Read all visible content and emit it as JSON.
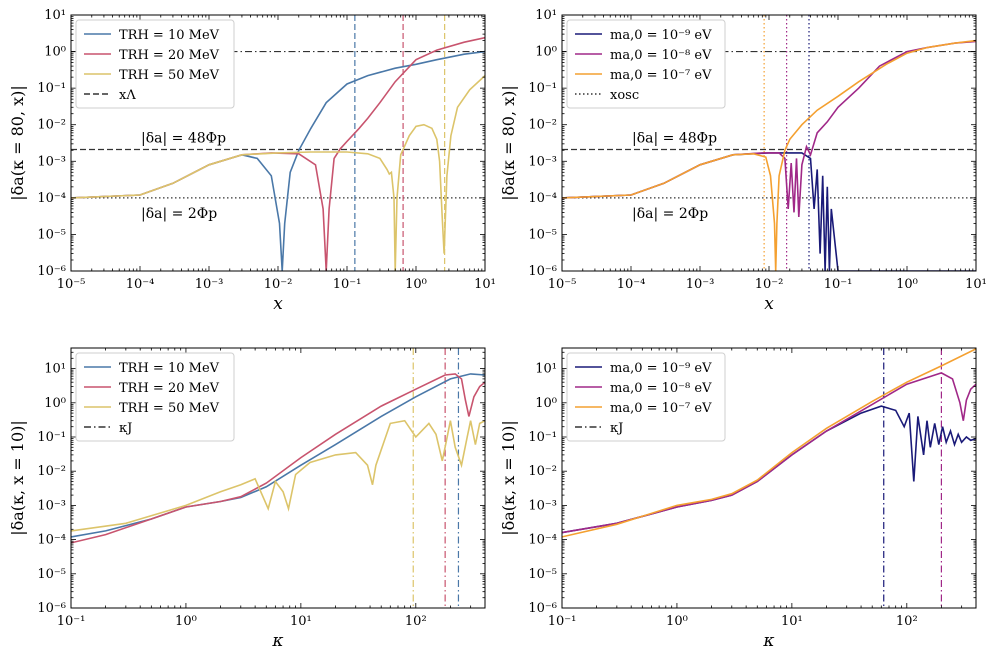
{
  "figure": {
    "colors": {
      "T10": "#4a78a8",
      "T20": "#c8546e",
      "T50": "#dcc46a",
      "m9": "#1a1a78",
      "m8": "#a02888",
      "m7": "#f4a030",
      "ref": "#333333"
    }
  },
  "chart_data": [
    {
      "id": "top-left",
      "type": "line",
      "xscale": "log",
      "yscale": "log",
      "xlim": [
        1e-05,
        10
      ],
      "ylim": [
        1e-06,
        10
      ],
      "xlabel": "x",
      "ylabel": "|δa(κ = 80, x)|",
      "xticks": [
        "10⁻⁵",
        "10⁻⁴",
        "10⁻³",
        "10⁻²",
        "10⁻¹",
        "10⁰",
        "10¹"
      ],
      "yticks": [
        "10⁻⁶",
        "10⁻⁵",
        "10⁻⁴",
        "10⁻³",
        "10⁻²",
        "10⁻¹",
        "10⁰",
        "10¹"
      ],
      "legend_position": "top-left",
      "annotations": [
        "|δa| = 48Φp",
        "|δa| = 2Φp"
      ],
      "hlines": [
        {
          "y": 0.0021,
          "style": "dashed",
          "color_key": "ref"
        },
        {
          "y": 0.0001,
          "style": "dotted",
          "color_key": "ref"
        },
        {
          "y": 1.0,
          "style": "dashdot",
          "color_key": "ref"
        }
      ],
      "vlines": [
        {
          "x": 0.13,
          "style": "dashed",
          "color_key": "T10"
        },
        {
          "x": 0.65,
          "style": "dashed",
          "color_key": "T20"
        },
        {
          "x": 2.6,
          "style": "dashed",
          "color_key": "T50"
        }
      ],
      "legend_extra": {
        "label": "xΛ",
        "style": "dashed",
        "color_key": "ref"
      },
      "series": [
        {
          "name": "TRH = 10 MeV",
          "color_key": "T10",
          "x": [
            1e-05,
            0.0001,
            0.0003,
            0.001,
            0.003,
            0.005,
            0.008,
            0.0105,
            0.0115,
            0.0125,
            0.015,
            0.02,
            0.03,
            0.05,
            0.1,
            0.2,
            0.5,
            1,
            2,
            5,
            10
          ],
          "y": [
            0.0001,
            0.00012,
            0.00025,
            0.0008,
            0.0015,
            0.0012,
            0.0004,
            2e-05,
            1e-06,
            2e-05,
            0.0005,
            0.002,
            0.008,
            0.04,
            0.13,
            0.22,
            0.35,
            0.45,
            0.6,
            0.85,
            1.0
          ]
        },
        {
          "name": "TRH = 20 MeV",
          "color_key": "T20",
          "x": [
            1e-05,
            0.0001,
            0.0003,
            0.001,
            0.003,
            0.008,
            0.02,
            0.035,
            0.045,
            0.05,
            0.055,
            0.065,
            0.08,
            0.1,
            0.15,
            0.2,
            0.3,
            0.5,
            1,
            2,
            5,
            10
          ],
          "y": [
            0.0001,
            0.00012,
            0.00025,
            0.0008,
            0.0015,
            0.0017,
            0.0016,
            0.0008,
            5e-05,
            1e-06,
            5e-05,
            0.0012,
            0.0022,
            0.0035,
            0.008,
            0.015,
            0.04,
            0.15,
            0.6,
            1.1,
            1.8,
            2.4
          ]
        },
        {
          "name": "TRH = 50 MeV",
          "color_key": "T50",
          "x": [
            1e-05,
            0.0001,
            0.0003,
            0.001,
            0.003,
            0.01,
            0.03,
            0.1,
            0.2,
            0.3,
            0.38,
            0.41,
            0.44,
            0.48,
            0.5,
            0.53,
            0.6,
            0.8,
            1,
            1.3,
            1.7,
            2.0,
            2.2,
            2.4,
            2.55,
            2.8,
            3.2,
            4,
            6,
            10
          ],
          "y": [
            0.0001,
            0.00012,
            0.00025,
            0.0008,
            0.0015,
            0.0017,
            0.0018,
            0.0018,
            0.0016,
            0.0012,
            0.0006,
            0.00045,
            0.0005,
            0.0001,
            1e-06,
            0.0001,
            0.0015,
            0.005,
            0.009,
            0.01,
            0.008,
            0.004,
            0.001,
            3e-05,
            3e-06,
            0.0004,
            0.005,
            0.03,
            0.09,
            0.22
          ]
        }
      ]
    },
    {
      "id": "top-right",
      "type": "line",
      "xscale": "log",
      "yscale": "log",
      "xlim": [
        1e-05,
        10
      ],
      "ylim": [
        1e-06,
        10
      ],
      "xlabel": "x",
      "ylabel": "|δa(κ = 80, x)|",
      "xticks": [
        "10⁻⁵",
        "10⁻⁴",
        "10⁻³",
        "10⁻²",
        "10⁻¹",
        "10⁰",
        "10¹"
      ],
      "yticks": [
        "10⁻⁶",
        "10⁻⁵",
        "10⁻⁴",
        "10⁻³",
        "10⁻²",
        "10⁻¹",
        "10⁰",
        "10¹"
      ],
      "legend_position": "top-left",
      "annotations": [
        "|δa| = 48Φp",
        "|δa| = 2Φp"
      ],
      "hlines": [
        {
          "y": 0.0021,
          "style": "dashed",
          "color_key": "ref"
        },
        {
          "y": 0.0001,
          "style": "dotted",
          "color_key": "ref"
        },
        {
          "y": 1.0,
          "style": "dashdot",
          "color_key": "ref"
        }
      ],
      "vlines": [
        {
          "x": 0.0085,
          "style": "dotted",
          "color_key": "m7"
        },
        {
          "x": 0.018,
          "style": "dotted",
          "color_key": "m8"
        },
        {
          "x": 0.038,
          "style": "dotted",
          "color_key": "m9"
        }
      ],
      "legend_extra": {
        "label": "xosc",
        "style": "dotted",
        "color_key": "ref"
      },
      "series": [
        {
          "name": "ma,0 = 10⁻⁹ eV",
          "color_key": "m9",
          "x": [
            1e-05,
            0.0001,
            0.0003,
            0.001,
            0.003,
            0.01,
            0.02,
            0.03,
            0.04,
            0.045,
            0.05,
            0.055,
            0.06,
            0.065,
            0.07,
            0.075,
            0.08,
            0.1,
            0.2,
            0.5,
            1,
            2,
            5,
            10
          ],
          "y": [
            0.0001,
            0.00012,
            0.00025,
            0.0008,
            0.0015,
            0.0017,
            0.0017,
            0.0017,
            0.0012,
            5e-05,
            0.0006,
            3e-06,
            0.0004,
            1e-06,
            0.0002,
            1e-06,
            5e-05,
            1e-06,
            1e-06,
            1e-06,
            1e-06,
            1e-06,
            1e-06,
            1e-06
          ]
        },
        {
          "name": "ma,0 = 10⁻⁸ eV",
          "color_key": "m8",
          "x": [
            1e-05,
            0.0001,
            0.0003,
            0.001,
            0.003,
            0.008,
            0.014,
            0.017,
            0.019,
            0.021,
            0.023,
            0.025,
            0.027,
            0.03,
            0.035,
            0.04,
            0.05,
            0.07,
            0.1,
            0.2,
            0.4,
            1,
            2,
            5,
            10
          ],
          "y": [
            0.0001,
            0.00012,
            0.00025,
            0.0008,
            0.0015,
            0.0017,
            0.0017,
            0.0012,
            5e-05,
            0.0009,
            4e-05,
            0.0012,
            3e-05,
            0.0008,
            0.0025,
            0.0015,
            0.006,
            0.012,
            0.03,
            0.1,
            0.4,
            1.0,
            1.3,
            1.7,
            1.9
          ]
        },
        {
          "name": "ma,0 = 10⁻⁷ eV",
          "color_key": "m7",
          "x": [
            1e-05,
            0.0001,
            0.0003,
            0.001,
            0.003,
            0.006,
            0.009,
            0.0105,
            0.012,
            0.0125,
            0.013,
            0.014,
            0.017,
            0.02,
            0.03,
            0.05,
            0.1,
            0.2,
            0.5,
            1,
            2,
            5,
            10
          ],
          "y": [
            0.0001,
            0.00012,
            0.00025,
            0.0008,
            0.0015,
            0.0016,
            0.0013,
            0.0004,
            2e-05,
            1e-06,
            2e-05,
            0.0004,
            0.002,
            0.004,
            0.01,
            0.025,
            0.06,
            0.15,
            0.45,
            0.9,
            1.3,
            1.7,
            2.0
          ]
        }
      ]
    },
    {
      "id": "bottom-left",
      "type": "line",
      "xscale": "log",
      "yscale": "log",
      "xlim": [
        0.1,
        400
      ],
      "ylim": [
        1e-06,
        40
      ],
      "xlabel": "κ",
      "ylabel": "|δa(κ, x = 10)|",
      "xticks": [
        "10⁻¹",
        "10⁰",
        "10¹",
        "10²"
      ],
      "yticks": [
        "10⁻⁶",
        "10⁻⁵",
        "10⁻⁴",
        "10⁻³",
        "10⁻²",
        "10⁻¹",
        "10⁰",
        "10¹"
      ],
      "legend_position": "top-left",
      "vlines": [
        {
          "x": 95,
          "style": "dashdot",
          "color_key": "T50"
        },
        {
          "x": 180,
          "style": "dashdot",
          "color_key": "T20"
        },
        {
          "x": 235,
          "style": "dashdot",
          "color_key": "T10"
        }
      ],
      "legend_extra": {
        "label": "κJ",
        "style": "dashdot",
        "color_key": "ref"
      },
      "series": [
        {
          "name": "TRH = 10 MeV",
          "color_key": "T10",
          "x": [
            0.1,
            0.2,
            0.5,
            1,
            2,
            3,
            5,
            10,
            20,
            50,
            100,
            200,
            300,
            400
          ],
          "y": [
            0.00012,
            0.00018,
            0.0004,
            0.0009,
            0.0013,
            0.0017,
            0.0035,
            0.015,
            0.06,
            0.4,
            1.5,
            5,
            7,
            6.5
          ]
        },
        {
          "name": "TRH = 20 MeV",
          "color_key": "T20",
          "x": [
            0.1,
            0.2,
            0.5,
            1,
            2,
            3,
            5,
            10,
            20,
            50,
            100,
            180,
            220,
            250,
            270,
            290,
            320,
            360,
            400
          ],
          "y": [
            8e-05,
            0.00014,
            0.0004,
            0.0009,
            0.0013,
            0.0018,
            0.0045,
            0.025,
            0.12,
            0.8,
            2.5,
            6.5,
            7,
            5,
            1.2,
            0.4,
            1.5,
            3,
            4
          ]
        },
        {
          "name": "TRH = 50 MeV",
          "color_key": "T50",
          "x": [
            0.1,
            0.3,
            1,
            2,
            3,
            4,
            5.2,
            6,
            7,
            7.8,
            9,
            12,
            20,
            30,
            38,
            42,
            45,
            60,
            80,
            100,
            130,
            150,
            170,
            185,
            200,
            220,
            250,
            280,
            300,
            330,
            360,
            400
          ],
          "y": [
            0.00018,
            0.0003,
            0.001,
            0.0025,
            0.004,
            0.006,
            0.0008,
            0.005,
            0.0025,
            0.0008,
            0.008,
            0.018,
            0.03,
            0.035,
            0.015,
            0.004,
            0.015,
            0.25,
            0.3,
            0.1,
            0.25,
            0.12,
            0.02,
            0.08,
            0.3,
            0.05,
            0.015,
            0.1,
            0.3,
            0.06,
            0.25,
            0.3
          ]
        }
      ]
    },
    {
      "id": "bottom-right",
      "type": "line",
      "xscale": "log",
      "yscale": "log",
      "xlim": [
        0.1,
        400
      ],
      "ylim": [
        1e-06,
        40
      ],
      "xlabel": "κ",
      "ylabel": "|δa(κ, x = 10)|",
      "xticks": [
        "10⁻¹",
        "10⁰",
        "10¹",
        "10²"
      ],
      "yticks": [
        "10⁻⁶",
        "10⁻⁵",
        "10⁻⁴",
        "10⁻³",
        "10⁻²",
        "10⁻¹",
        "10⁰",
        "10¹"
      ],
      "legend_position": "top-left",
      "vlines": [
        {
          "x": 63,
          "style": "dashdot",
          "color_key": "m9"
        },
        {
          "x": 200,
          "style": "dashdot",
          "color_key": "m8"
        }
      ],
      "legend_extra": {
        "label": "κJ",
        "style": "dashdot",
        "color_key": "ref"
      },
      "series": [
        {
          "name": "ma,0 = 10⁻⁹ eV",
          "color_key": "m9",
          "x": [
            0.1,
            0.3,
            1,
            2,
            3,
            5,
            10,
            20,
            40,
            60,
            80,
            95,
            105,
            115,
            125,
            140,
            150,
            160,
            175,
            190,
            205,
            220,
            240,
            260,
            280,
            300,
            330,
            360,
            400
          ],
          "y": [
            0.00016,
            0.0003,
            0.0009,
            0.0014,
            0.002,
            0.005,
            0.03,
            0.15,
            0.5,
            0.8,
            0.6,
            0.2,
            0.5,
            0.005,
            0.4,
            0.03,
            0.3,
            0.05,
            0.25,
            0.06,
            0.2,
            0.07,
            0.15,
            0.06,
            0.12,
            0.07,
            0.1,
            0.08,
            0.09
          ]
        },
        {
          "name": "ma,0 = 10⁻⁸ eV",
          "color_key": "m8",
          "x": [
            0.1,
            0.3,
            1,
            2,
            3,
            5,
            10,
            20,
            50,
            100,
            200,
            250,
            290,
            310,
            330,
            360,
            400
          ],
          "y": [
            0.00016,
            0.0003,
            0.0009,
            0.0014,
            0.002,
            0.005,
            0.03,
            0.15,
            0.9,
            3.5,
            7.5,
            5,
            1,
            0.3,
            1.2,
            2.5,
            3.5
          ]
        },
        {
          "name": "ma,0 = 10⁻⁷ eV",
          "color_key": "m7",
          "x": [
            0.1,
            0.3,
            1,
            2,
            3,
            5,
            10,
            20,
            50,
            100,
            200,
            400
          ],
          "y": [
            0.00012,
            0.00028,
            0.001,
            0.0015,
            0.0022,
            0.0055,
            0.035,
            0.18,
            1.1,
            4,
            12,
            38
          ]
        }
      ]
    }
  ]
}
